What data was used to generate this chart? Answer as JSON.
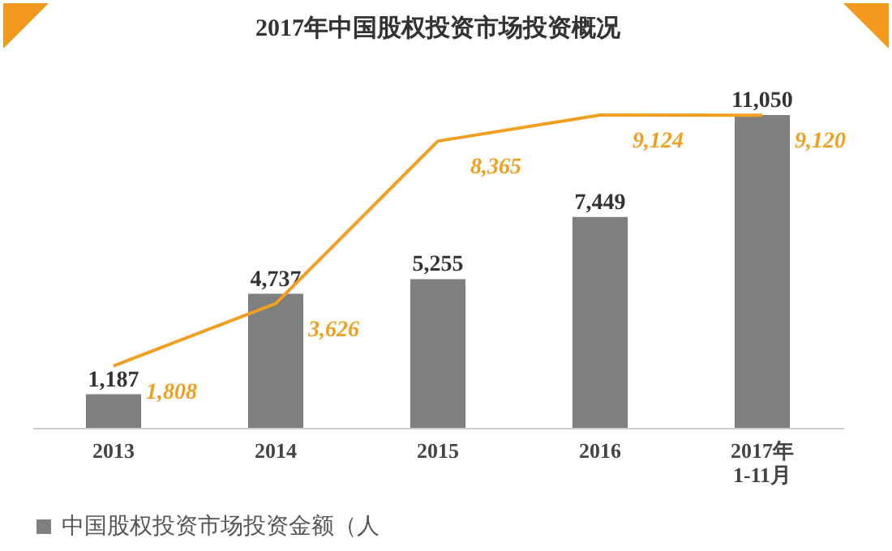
{
  "chart_data": {
    "type": "bar",
    "title": "2017年中国股权投资市场投资概况",
    "categories": [
      "2013",
      "2014",
      "2015",
      "2016",
      "2017年\n1-11月"
    ],
    "series": [
      {
        "name": "中国股权投资市场投资金额（人",
        "color": "#7f7f7f",
        "values": [
          1187,
          4737,
          5255,
          7449,
          11050
        ],
        "value_labels": [
          "1,187",
          "4,737",
          "5,255",
          "7,449",
          "11,050"
        ]
      },
      {
        "type": "line",
        "axis": "y2",
        "color": "#f0a020",
        "values": [
          1808,
          3626,
          8365,
          9124,
          9120
        ],
        "value_labels": [
          "1,808",
          "3,626",
          "8,365",
          "9,124",
          "9,120"
        ]
      }
    ],
    "legend": "bottom"
  }
}
